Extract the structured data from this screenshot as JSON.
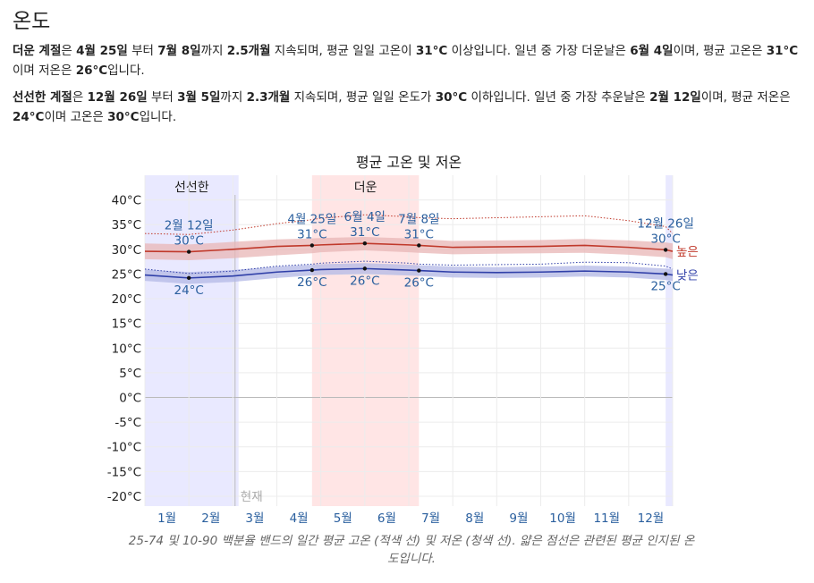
{
  "section_title": "온도",
  "paragraphs": [
    [
      {
        "t": "더운 계절",
        "b": true
      },
      {
        "t": "은 ",
        "b": false
      },
      {
        "t": "4월 25일",
        "b": true
      },
      {
        "t": " 부터 ",
        "b": false
      },
      {
        "t": "7월 8일",
        "b": true
      },
      {
        "t": "까지 ",
        "b": false
      },
      {
        "t": "2.5개월",
        "b": true
      },
      {
        "t": " 지속되며, 평균 일일 고온이 ",
        "b": false
      },
      {
        "t": "31°C",
        "b": true
      },
      {
        "t": " 이상입니다. 일년 중 가장 더운날은 ",
        "b": false
      },
      {
        "t": "6월 4일",
        "b": true
      },
      {
        "t": "이며, 평균 고온은 ",
        "b": false
      },
      {
        "t": "31°C",
        "b": true
      },
      {
        "t": "이며 저온은 ",
        "b": false
      },
      {
        "t": "26°C",
        "b": true
      },
      {
        "t": "입니다.",
        "b": false
      }
    ],
    [
      {
        "t": "선선한 계절",
        "b": true
      },
      {
        "t": "은 ",
        "b": false
      },
      {
        "t": "12월 26일",
        "b": true
      },
      {
        "t": " 부터 ",
        "b": false
      },
      {
        "t": "3월 5일",
        "b": true
      },
      {
        "t": "까지 ",
        "b": false
      },
      {
        "t": "2.3개월",
        "b": true
      },
      {
        "t": " 지속되며, 평균 일일 온도가 ",
        "b": false
      },
      {
        "t": "30°C",
        "b": true
      },
      {
        "t": " 이하입니다. 일년 중 가장 추운날은 ",
        "b": false
      },
      {
        "t": "2월 12일",
        "b": true
      },
      {
        "t": "이며, 평균 저온은 ",
        "b": false
      },
      {
        "t": "24°C",
        "b": true
      },
      {
        "t": "이며 고온은 ",
        "b": false
      },
      {
        "t": "30°C",
        "b": true
      },
      {
        "t": "입니다.",
        "b": false
      }
    ]
  ],
  "chart_data": {
    "type": "line",
    "title": "평균 고온 및 저온",
    "x_axis": {
      "unit": "month",
      "range": [
        1,
        13
      ],
      "tick_labels": [
        "1월",
        "2월",
        "3월",
        "4월",
        "5월",
        "6월",
        "7월",
        "8월",
        "9월",
        "10월",
        "11월",
        "12월"
      ]
    },
    "y_axis": {
      "range": [
        -22,
        45
      ],
      "ticks": [
        40,
        35,
        30,
        25,
        20,
        15,
        10,
        5,
        0,
        -5,
        -10,
        -15,
        -20
      ],
      "tick_labels": [
        "40°C",
        "35°C",
        "30°C",
        "25°C",
        "20°C",
        "15°C",
        "10°C",
        "5°C",
        "0°C",
        "-5°C",
        "-10°C",
        "-15°C",
        "-20°C"
      ]
    },
    "seasons": [
      {
        "label": "선선한",
        "start": 1,
        "end": 3.13,
        "color": "#e9e9ff"
      },
      {
        "label": "",
        "start": 12.84,
        "end": 13,
        "color": "#e9e9ff"
      },
      {
        "label": "더운",
        "start": 4.8,
        "end": 7.23,
        "color": "#ffe5e5"
      }
    ],
    "current_marker": {
      "label": "현재",
      "x": 3.05
    },
    "series": [
      {
        "name": "높은",
        "color": "#c0392b",
        "band_color": "#e8b5b5",
        "x": [
          1,
          2,
          3,
          4,
          4.8,
          5,
          6,
          7,
          7.23,
          8,
          9,
          10,
          11,
          12,
          12.84,
          13
        ],
        "values": [
          29.6,
          29.5,
          30.0,
          30.6,
          30.8,
          30.9,
          31.2,
          30.9,
          30.8,
          30.4,
          30.5,
          30.6,
          30.8,
          30.4,
          29.9,
          29.6
        ],
        "p10": [
          28.0,
          27.8,
          28.2,
          28.8,
          29.2,
          29.4,
          29.8,
          29.4,
          29.3,
          29.0,
          29.1,
          29.2,
          29.3,
          28.9,
          28.4,
          28.0
        ],
        "p90": [
          31.2,
          31.0,
          31.5,
          32.0,
          32.2,
          32.3,
          32.5,
          32.2,
          32.1,
          31.7,
          31.8,
          31.9,
          32.1,
          31.8,
          31.4,
          31.2
        ],
        "perceived": [
          33.2,
          33.0,
          33.9,
          35.2,
          36.0,
          36.3,
          37.0,
          36.6,
          36.4,
          36.2,
          36.4,
          36.6,
          36.8,
          35.8,
          34.6,
          33.2
        ]
      },
      {
        "name": "낮은",
        "color": "#2f3fa8",
        "band_color": "#b3b8e6",
        "x": [
          1,
          2,
          3,
          4,
          4.8,
          5,
          6,
          7,
          7.23,
          8,
          9,
          10,
          11,
          12,
          12.84,
          13
        ],
        "values": [
          24.8,
          24.2,
          24.6,
          25.4,
          25.8,
          25.9,
          26.1,
          25.8,
          25.7,
          25.4,
          25.3,
          25.4,
          25.6,
          25.4,
          25.0,
          24.8
        ],
        "p10": [
          23.6,
          23.0,
          23.4,
          24.2,
          24.7,
          24.8,
          25.0,
          24.7,
          24.6,
          24.3,
          24.2,
          24.3,
          24.5,
          24.3,
          23.8,
          23.6
        ],
        "p90": [
          25.9,
          25.4,
          25.8,
          26.5,
          26.9,
          27.0,
          27.2,
          26.9,
          26.8,
          26.5,
          26.4,
          26.5,
          26.7,
          26.5,
          26.1,
          25.9
        ],
        "perceived": [
          26.0,
          25.1,
          25.6,
          26.6,
          27.0,
          27.2,
          27.6,
          27.2,
          27.0,
          26.8,
          26.9,
          27.0,
          27.4,
          27.3,
          26.6,
          26.0
        ]
      }
    ],
    "annotations": [
      {
        "date": "2월 12일",
        "x": 2.0,
        "high": "30°C",
        "low": "24°C",
        "high_val": 29.5,
        "low_val": 24.2
      },
      {
        "date": "4월 25일",
        "x": 4.8,
        "high": "31°C",
        "low": "26°C",
        "high_val": 30.8,
        "low_val": 25.8
      },
      {
        "date": "6월 4일",
        "x": 6.0,
        "high": "31°C",
        "low": "26°C",
        "high_val": 31.2,
        "low_val": 26.1
      },
      {
        "date": "7월 8일",
        "x": 7.23,
        "high": "31°C",
        "low": "26°C",
        "high_val": 30.8,
        "low_val": 25.7
      },
      {
        "date": "12월 26일",
        "x": 12.84,
        "high": "30°C",
        "low": "25°C",
        "high_val": 29.9,
        "low_val": 25.0
      }
    ],
    "caption": "25-74 및 10-90 백분율 밴드의 일간 평균 고온 (적색 선) 및 저온 (청색 선). 얇은 점선은 관련된 평균 인지된 온도입니다."
  }
}
